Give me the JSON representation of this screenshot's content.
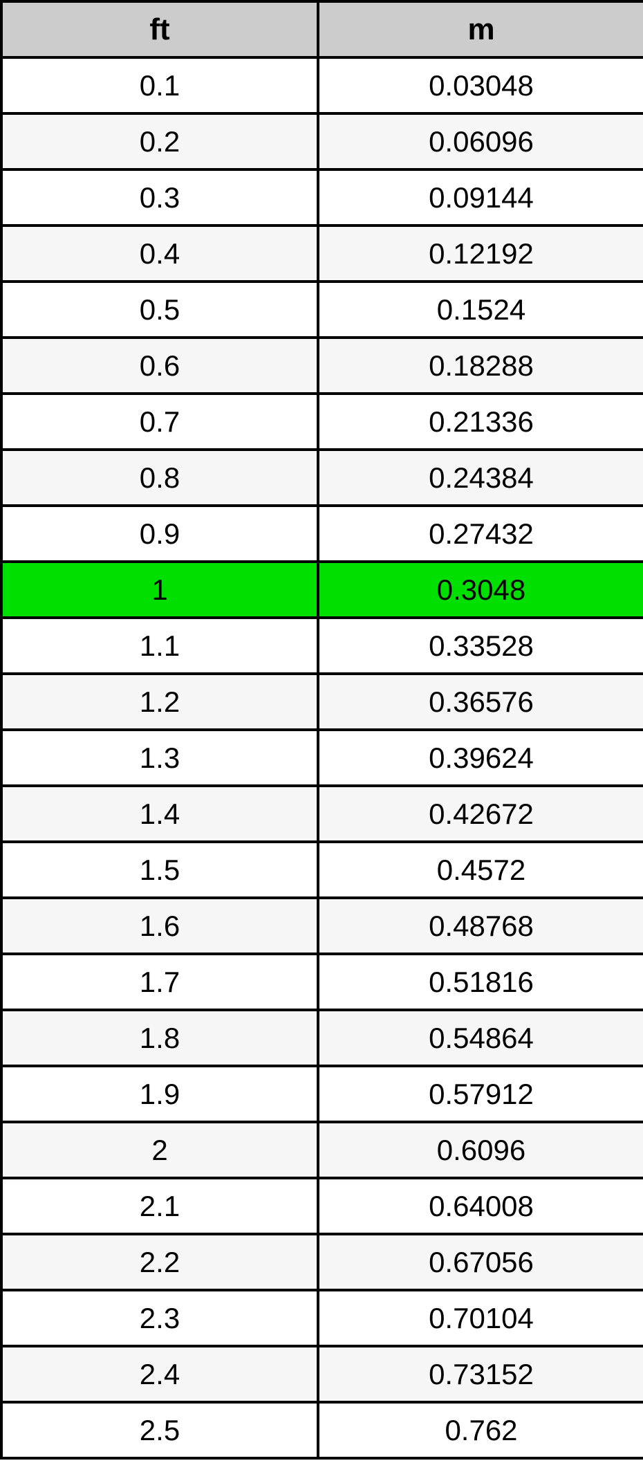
{
  "colors": {
    "header_background": "#cccccc",
    "row_white": "#ffffff",
    "row_alternate": "#f6f6f6",
    "highlight_green": "#00e000",
    "border": "#000000",
    "text": "#000000"
  },
  "chart_data": {
    "type": "table",
    "title": "",
    "columns": [
      "ft",
      "m"
    ],
    "highlighted_row_index": 9,
    "rows": [
      {
        "ft": "0.1",
        "m": "0.03048",
        "highlighted": false
      },
      {
        "ft": "0.2",
        "m": "0.06096",
        "highlighted": false
      },
      {
        "ft": "0.3",
        "m": "0.09144",
        "highlighted": false
      },
      {
        "ft": "0.4",
        "m": "0.12192",
        "highlighted": false
      },
      {
        "ft": "0.5",
        "m": "0.1524",
        "highlighted": false
      },
      {
        "ft": "0.6",
        "m": "0.18288",
        "highlighted": false
      },
      {
        "ft": "0.7",
        "m": "0.21336",
        "highlighted": false
      },
      {
        "ft": "0.8",
        "m": "0.24384",
        "highlighted": false
      },
      {
        "ft": "0.9",
        "m": "0.27432",
        "highlighted": false
      },
      {
        "ft": "1",
        "m": "0.3048",
        "highlighted": true
      },
      {
        "ft": "1.1",
        "m": "0.33528",
        "highlighted": false
      },
      {
        "ft": "1.2",
        "m": "0.36576",
        "highlighted": false
      },
      {
        "ft": "1.3",
        "m": "0.39624",
        "highlighted": false
      },
      {
        "ft": "1.4",
        "m": "0.42672",
        "highlighted": false
      },
      {
        "ft": "1.5",
        "m": "0.4572",
        "highlighted": false
      },
      {
        "ft": "1.6",
        "m": "0.48768",
        "highlighted": false
      },
      {
        "ft": "1.7",
        "m": "0.51816",
        "highlighted": false
      },
      {
        "ft": "1.8",
        "m": "0.54864",
        "highlighted": false
      },
      {
        "ft": "1.9",
        "m": "0.57912",
        "highlighted": false
      },
      {
        "ft": "2",
        "m": "0.6096",
        "highlighted": false
      },
      {
        "ft": "2.1",
        "m": "0.64008",
        "highlighted": false
      },
      {
        "ft": "2.2",
        "m": "0.67056",
        "highlighted": false
      },
      {
        "ft": "2.3",
        "m": "0.70104",
        "highlighted": false
      },
      {
        "ft": "2.4",
        "m": "0.73152",
        "highlighted": false
      },
      {
        "ft": "2.5",
        "m": "0.762",
        "highlighted": false
      }
    ]
  }
}
